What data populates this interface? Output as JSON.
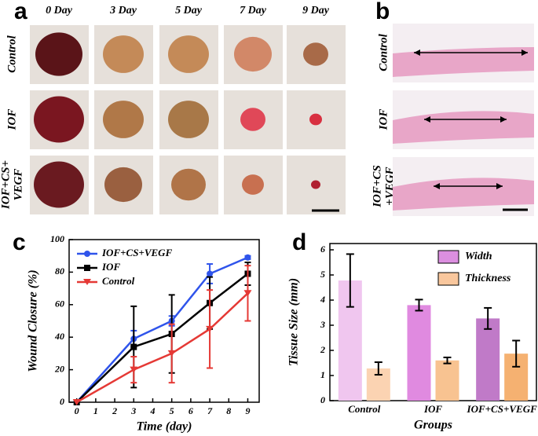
{
  "panels": {
    "a": {
      "label": "a",
      "columns": [
        "0 Day",
        "3 Day",
        "5 Day",
        "7 Day",
        "9 Day"
      ],
      "rows": [
        [
          "Control"
        ],
        [
          "IOF"
        ],
        [
          "IOF+CS+",
          "VEGF"
        ]
      ]
    },
    "b": {
      "label": "b",
      "rows": [
        [
          "Control"
        ],
        [
          "IOF"
        ],
        [
          "IOF+CS",
          "+VEGF"
        ]
      ]
    },
    "c": {
      "label": "c"
    },
    "d": {
      "label": "d"
    }
  },
  "chart_data": [
    {
      "type": "line",
      "xlabel": "Time (day)",
      "ylabel": "Wound Closure (%)",
      "x": [
        0,
        3,
        5,
        7,
        9
      ],
      "xlim": [
        -0.4,
        9.6
      ],
      "xticks": [
        0,
        1,
        2,
        3,
        4,
        5,
        6,
        7,
        8,
        9
      ],
      "ylim": [
        0,
        100
      ],
      "yticks": [
        0,
        20,
        40,
        60,
        80,
        100
      ],
      "legend": "upper left",
      "series": [
        {
          "name": "IOF+CS+VEGF",
          "color": "#2f54eb",
          "marker": "circle",
          "values": [
            0,
            39,
            50,
            79,
            89
          ],
          "error": [
            0,
            5,
            3,
            6,
            1
          ]
        },
        {
          "name": "IOF",
          "color": "#000000",
          "marker": "square",
          "values": [
            0,
            34,
            42,
            61,
            79
          ],
          "error": [
            0,
            25,
            24,
            16,
            7
          ]
        },
        {
          "name": "Control",
          "color": "#e53935",
          "marker": "triangle-down",
          "values": [
            0,
            20,
            30,
            45,
            67
          ],
          "error": [
            0,
            8,
            18,
            24,
            17
          ]
        }
      ]
    },
    {
      "type": "bar",
      "xlabel": "Groups",
      "ylabel": "Tissue Size (mm)",
      "categories": [
        "Control",
        "IOF",
        "IOF+CS+VEGF"
      ],
      "ylim": [
        0,
        6.25
      ],
      "yticks": [
        0,
        1,
        2,
        3,
        4,
        5,
        6
      ],
      "legend": "upper right",
      "series": [
        {
          "name": "Width",
          "color": "#dc8fe0",
          "colors": [
            "#f0c6ef",
            "#e08ae0",
            "#c07ac8"
          ],
          "values": [
            4.78,
            3.8,
            3.27
          ],
          "error": [
            1.05,
            0.22,
            0.42
          ]
        },
        {
          "name": "Thickness",
          "color": "#f9c79d",
          "colors": [
            "#fbd3b2",
            "#f8c391",
            "#f5b171"
          ],
          "values": [
            1.28,
            1.6,
            1.87
          ],
          "error": [
            0.25,
            0.12,
            0.52
          ]
        }
      ]
    }
  ]
}
